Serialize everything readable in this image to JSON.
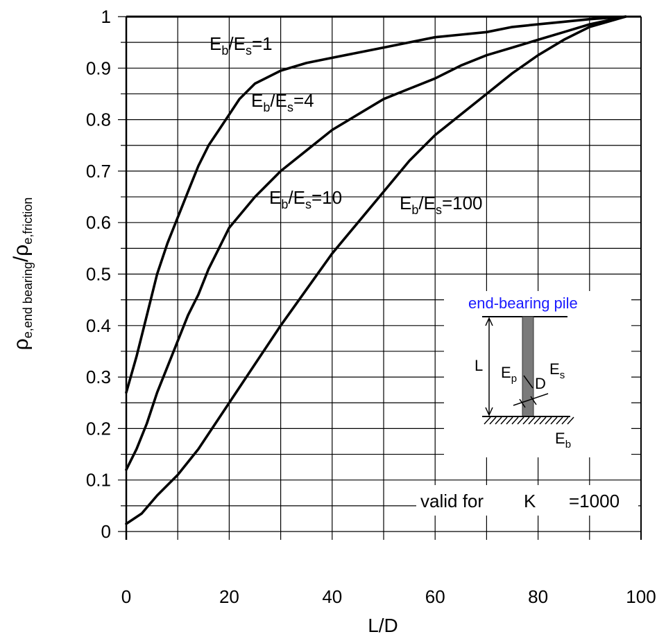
{
  "chart_data": {
    "type": "line",
    "xlabel": "L/D",
    "ylabel": {
      "symbol1": "ρ",
      "sub1": "e,end bearing",
      "slash": "/",
      "symbol2": "ρ",
      "sub2": "e,friction"
    },
    "xlim": [
      0,
      100
    ],
    "ylim": [
      0,
      1
    ],
    "x_ticks": [
      "0",
      "20",
      "40",
      "60",
      "80",
      "100"
    ],
    "y_ticks": [
      "0",
      "0.1",
      "0.2",
      "0.3",
      "0.4",
      "0.5",
      "0.6",
      "0.7",
      "0.8",
      "0.9",
      "1"
    ],
    "grid": true,
    "series": [
      {
        "label": {
          "main": "E",
          "sub_b": "b",
          "slash": "/E",
          "sub_s": "s",
          "tail": "=1"
        },
        "x": [
          0,
          2,
          4,
          6,
          8,
          10,
          12,
          14,
          16,
          18,
          20,
          22,
          25,
          30,
          35,
          40,
          45,
          50,
          55,
          60,
          65,
          70,
          75,
          80,
          85,
          90,
          97
        ],
        "y": [
          0.27,
          0.34,
          0.42,
          0.5,
          0.56,
          0.61,
          0.66,
          0.71,
          0.75,
          0.78,
          0.81,
          0.84,
          0.87,
          0.895,
          0.91,
          0.92,
          0.93,
          0.94,
          0.95,
          0.96,
          0.965,
          0.97,
          0.98,
          0.985,
          0.99,
          0.995,
          1.0
        ]
      },
      {
        "label": {
          "main": "E",
          "sub_b": "b",
          "slash": "/E",
          "sub_s": "s",
          "tail": "=4"
        },
        "x": [
          0,
          2,
          4,
          6,
          8,
          10,
          12,
          14,
          16,
          18,
          20,
          25,
          30,
          35,
          40,
          45,
          50,
          55,
          60,
          65,
          70,
          75,
          80,
          85,
          90,
          97
        ],
        "y": [
          0.12,
          0.16,
          0.21,
          0.27,
          0.32,
          0.37,
          0.42,
          0.46,
          0.51,
          0.55,
          0.59,
          0.65,
          0.7,
          0.74,
          0.78,
          0.81,
          0.84,
          0.86,
          0.88,
          0.905,
          0.925,
          0.94,
          0.955,
          0.97,
          0.985,
          1.0
        ]
      },
      {
        "label": {
          "main": "E",
          "sub_b": "b",
          "slash": "/E",
          "sub_s": "s",
          "tail": "=10"
        },
        "x": [
          0,
          3,
          6,
          10,
          14,
          18,
          22,
          26,
          30,
          35,
          40,
          45,
          50,
          55,
          60,
          65,
          70,
          75,
          80,
          85,
          90,
          97
        ],
        "y": [
          0.015,
          0.035,
          0.07,
          0.11,
          0.16,
          0.22,
          0.28,
          0.34,
          0.4,
          0.47,
          0.54,
          0.6,
          0.66,
          0.72,
          0.77,
          0.81,
          0.85,
          0.89,
          0.925,
          0.955,
          0.98,
          1.0
        ]
      }
    ],
    "extra_labels": [
      {
        "main": "E",
        "sub_b": "b",
        "slash": "/E",
        "sub_s": "s",
        "tail": "=100"
      }
    ],
    "inset": {
      "title": "end-bearing pile",
      "title_color": "#1a1aff",
      "L": "L",
      "Ep_main": "E",
      "Ep_sub": "p",
      "D": "D",
      "Es_main": "E",
      "Es_sub": "s",
      "Eb_main": "E",
      "Eb_sub": "b"
    },
    "note": {
      "prefix": "valid for",
      "K": "K",
      "suffix": "=1000"
    }
  }
}
